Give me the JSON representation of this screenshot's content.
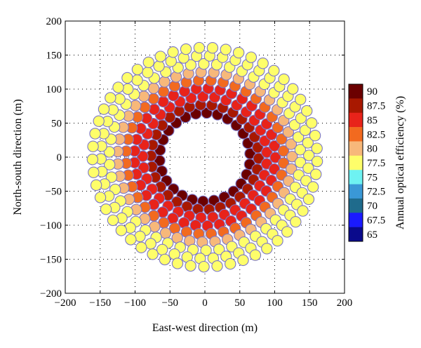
{
  "chart_data": {
    "type": "scatter",
    "title": "",
    "xlabel": "East-west direction (m)",
    "ylabel": "North-south direction (m)",
    "xlim": [
      -200,
      200
    ],
    "ylim": [
      -200,
      200
    ],
    "xticks": [
      "−200",
      "−150",
      "−100",
      "−50",
      "0",
      "50",
      "100",
      "150",
      "200"
    ],
    "yticks": [
      "−200",
      "−150",
      "−100",
      "−50",
      "0",
      "50",
      "100",
      "150",
      "200"
    ],
    "grid": "dotted",
    "marker": "circle",
    "field_description": "Radially staggered heliostat field; each point is one heliostat colored by annual optical efficiency",
    "rings": [
      {
        "radius": 65,
        "count": 26,
        "efficiency": 90
      },
      {
        "radius": 77,
        "count": 30,
        "efficiency": 87.5
      },
      {
        "radius": 89,
        "count": 33,
        "efficiency": 85
      },
      {
        "radius": 101,
        "count": 37,
        "efficiency": 85
      },
      {
        "radius": 113,
        "count": 40,
        "efficiency": 82.5
      },
      {
        "radius": 125,
        "count": 43,
        "efficiency": 80
      },
      {
        "radius": 137,
        "count": 46,
        "efficiency": 77.5
      },
      {
        "radius": 149,
        "count": 50,
        "efficiency": 77.5
      },
      {
        "radius": 161,
        "count": 53,
        "efficiency": 77.5
      }
    ],
    "colorbar": {
      "label": "Annual optical efficiency (%)",
      "ticks": [
        "90",
        "87.5",
        "85",
        "82.5",
        "80",
        "77.5",
        "75",
        "72.5",
        "70",
        "67.5",
        "65"
      ],
      "colors": [
        "#6b0000",
        "#a81800",
        "#e8231a",
        "#f26a1f",
        "#f7b87a",
        "#fefe6a",
        "#6ef2f2",
        "#3a98d6",
        "#1f6b8c",
        "#1a1aff",
        "#0a0a8c"
      ]
    },
    "colors": {
      "marker_edge": "#7b76c8"
    }
  }
}
